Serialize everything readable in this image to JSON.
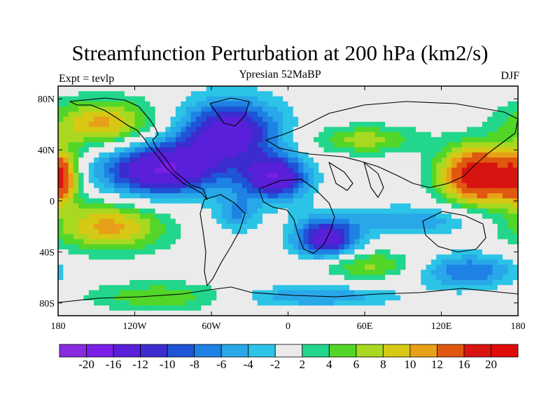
{
  "chart_data": {
    "type": "heatmap",
    "title": "Streamfunction Perturbation at 200 hPa (km2/s)",
    "subtitle": "Ypresian  52MaBP",
    "left_label": "Expt = tevlp",
    "right_label": "DJF",
    "x_ticks": [
      {
        "label": "180",
        "value": -180
      },
      {
        "label": "120W",
        "value": -120
      },
      {
        "label": "60W",
        "value": -60
      },
      {
        "label": "0",
        "value": 0
      },
      {
        "label": "60E",
        "value": 60
      },
      {
        "label": "120E",
        "value": 120
      },
      {
        "label": "180",
        "value": 180
      }
    ],
    "y_ticks": [
      {
        "label": "80N",
        "value": 80
      },
      {
        "label": "40N",
        "value": 40
      },
      {
        "label": "0",
        "value": 0
      },
      {
        "label": "40S",
        "value": -40
      },
      {
        "label": "80S",
        "value": -80
      }
    ],
    "xlim": [
      -180,
      180
    ],
    "ylim": [
      -90,
      90
    ],
    "colorbar": {
      "levels": [
        "-20",
        "-16",
        "-12",
        "-10",
        "-8",
        "-6",
        "-4",
        "-2",
        "2",
        "4",
        "6",
        "8",
        "10",
        "12",
        "16",
        "20"
      ],
      "level_values": [
        -20,
        -16,
        -12,
        -10,
        -8,
        -6,
        -4,
        -2,
        2,
        4,
        6,
        8,
        10,
        12,
        16,
        20
      ],
      "colors": [
        "#8A2BE2",
        "#7B1FE8",
        "#5A1FD8",
        "#3C2CD0",
        "#1E54D6",
        "#1E82E4",
        "#28A8E8",
        "#2CC4E6",
        "#EBEBEB",
        "#22D68C",
        "#52D628",
        "#A8D820",
        "#D6C814",
        "#E8A018",
        "#E05810",
        "#D81410",
        "#E00A0A"
      ]
    },
    "field_centers": [
      {
        "lon": -145,
        "lat": 60,
        "value": 11,
        "sx": 30,
        "sy": 14
      },
      {
        "lon": -140,
        "lat": -20,
        "value": 11,
        "sx": 32,
        "sy": 14
      },
      {
        "lon": -100,
        "lat": 25,
        "value": -16,
        "sx": 35,
        "sy": 16
      },
      {
        "lon": -45,
        "lat": 55,
        "value": -14,
        "sx": 28,
        "sy": 18
      },
      {
        "lon": -10,
        "lat": 18,
        "value": -15,
        "sx": 18,
        "sy": 12
      },
      {
        "lon": 30,
        "lat": -30,
        "value": -14,
        "sx": 18,
        "sy": 12
      },
      {
        "lon": 60,
        "lat": 48,
        "value": 7,
        "sx": 30,
        "sy": 8
      },
      {
        "lon": 150,
        "lat": 20,
        "value": 20,
        "sx": 22,
        "sy": 16
      },
      {
        "lon": -178,
        "lat": 18,
        "value": 12,
        "sx": 10,
        "sy": 14
      },
      {
        "lon": 140,
        "lat": -55,
        "value": -8,
        "sx": 28,
        "sy": 10
      },
      {
        "lon": 60,
        "lat": -50,
        "value": 7,
        "sx": 30,
        "sy": 8
      },
      {
        "lon": -100,
        "lat": -75,
        "value": 6,
        "sx": 40,
        "sy": 8
      },
      {
        "lon": 20,
        "lat": -75,
        "value": -6,
        "sx": 45,
        "sy": 6
      },
      {
        "lon": -40,
        "lat": -10,
        "value": -6,
        "sx": 12,
        "sy": 10
      },
      {
        "lon": 100,
        "lat": -15,
        "value": -6,
        "sx": 35,
        "sy": 8
      }
    ]
  }
}
